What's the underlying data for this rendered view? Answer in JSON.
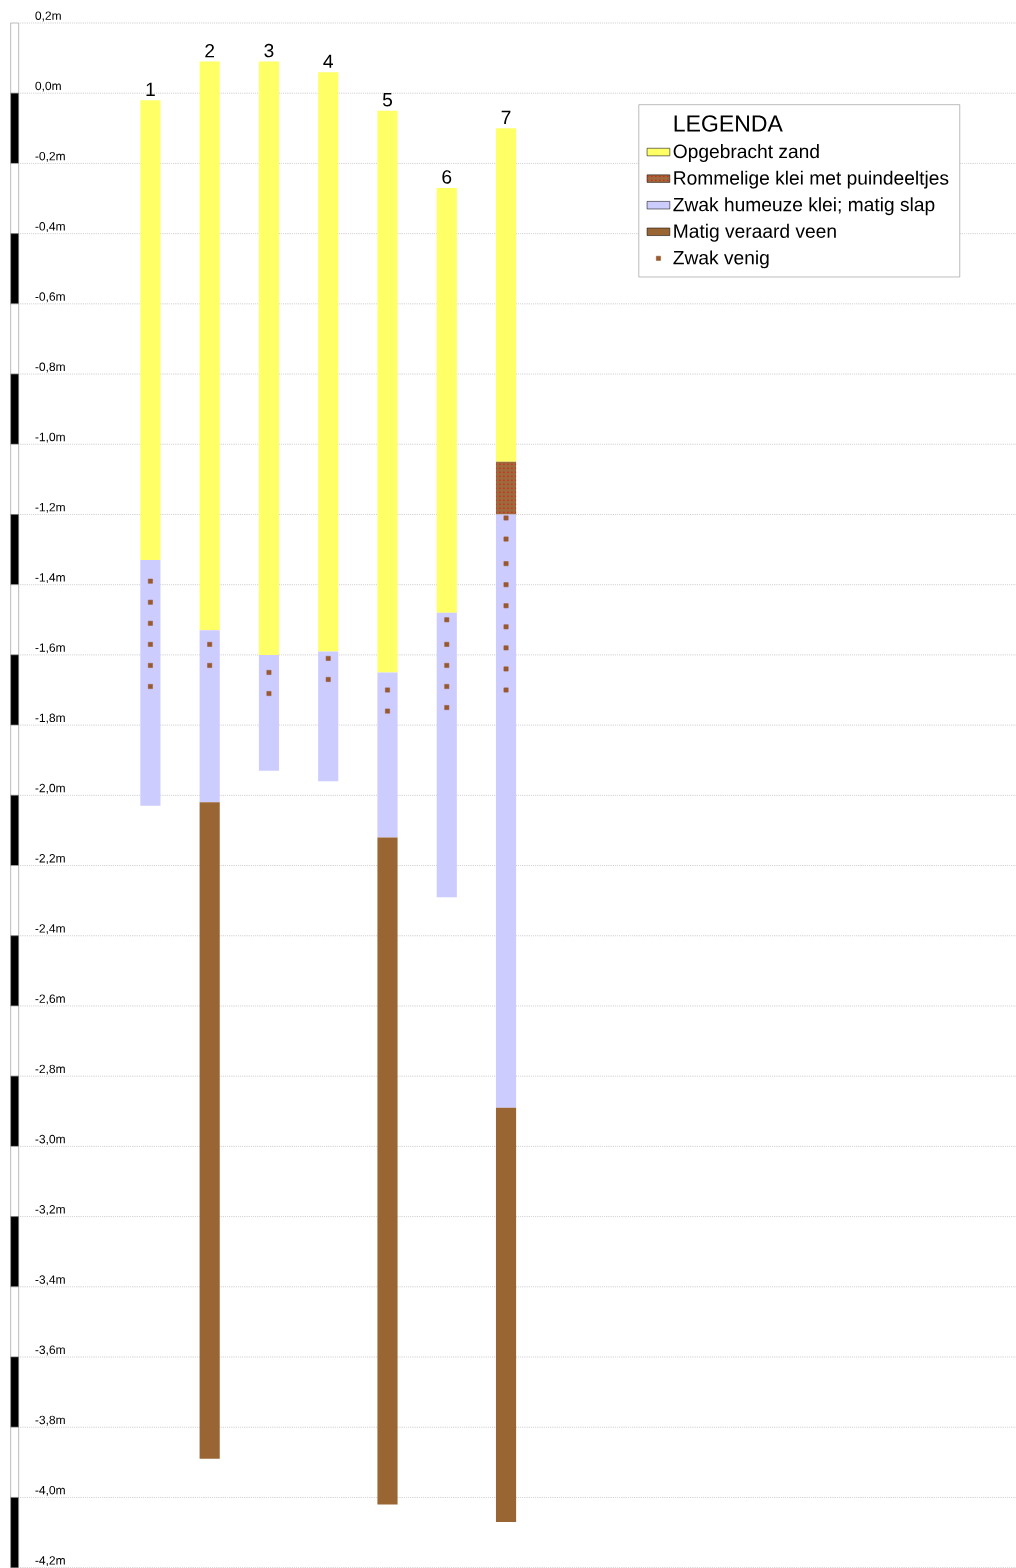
{
  "chart_data": {
    "type": "bar",
    "legend_title": "LEGENDA",
    "categories": [
      "1",
      "2",
      "3",
      "4",
      "5",
      "6",
      "7"
    ],
    "series": [
      {
        "name": "Opgebracht zand",
        "color": "#ffff66",
        "base": [
          -1.33,
          -1.53,
          -1.6,
          -1.59,
          -1.65,
          -1.48,
          -1.05
        ],
        "values": [
          1.31,
          1.62,
          1.69,
          1.65,
          1.6,
          1.21,
          0.95
        ]
      },
      {
        "name": "Rommelige klei met puindeeltjes",
        "color": "#9c6a3c",
        "base": [
          null,
          null,
          null,
          null,
          null,
          null,
          -1.2
        ],
        "values": [
          null,
          null,
          null,
          null,
          null,
          null,
          0.15
        ]
      },
      {
        "name": "Zwak humeuze klei; matig slap",
        "color": "#ccccff",
        "base": [
          -2.03,
          -2.02,
          -1.93,
          -1.96,
          -2.12,
          -2.29,
          -2.89
        ],
        "values": [
          0.7,
          0.49,
          0.33,
          0.37,
          0.47,
          0.81,
          1.69
        ]
      },
      {
        "name": "Matig veraard veen",
        "color": "#996633",
        "base": [
          null,
          -3.89,
          null,
          null,
          -4.02,
          null,
          -4.07
        ],
        "values": [
          null,
          1.87,
          null,
          null,
          1.9,
          null,
          1.18
        ]
      },
      {
        "name": "Zwak venig",
        "type": "scatter",
        "marker": "square",
        "color": "#99582e",
        "x": [
          "1",
          "1",
          "1",
          "1",
          "1",
          "1",
          "2",
          "2",
          "3",
          "3",
          "4",
          "4",
          "5",
          "5",
          "6",
          "6",
          "6",
          "6",
          "6",
          "7",
          "7",
          "7",
          "7",
          "7",
          "7",
          "7",
          "7",
          "7"
        ],
        "values": [
          -1.39,
          -1.45,
          -1.51,
          -1.57,
          -1.63,
          -1.69,
          -1.57,
          -1.63,
          -1.65,
          -1.71,
          -1.61,
          -1.67,
          -1.7,
          -1.76,
          -1.5,
          -1.57,
          -1.63,
          -1.69,
          -1.75,
          -1.21,
          -1.27,
          -1.34,
          -1.4,
          -1.46,
          -1.52,
          -1.58,
          -1.64,
          -1.7
        ]
      }
    ],
    "ylim": [
      -4.2,
      0.22
    ],
    "yticks": [
      {
        "value": 0.2,
        "label": "0,2m"
      },
      {
        "value": 0,
        "label": "0,0m"
      },
      {
        "value": -0.2,
        "label": "-0,2m"
      },
      {
        "value": -0.4,
        "label": "-0,4m"
      },
      {
        "value": -0.6,
        "label": "-0,6m"
      },
      {
        "value": -0.8,
        "label": "-0,8m"
      },
      {
        "value": -1.0,
        "label": "-1,0m"
      },
      {
        "value": -1.2,
        "label": "-1,2m"
      },
      {
        "value": -1.4,
        "label": "-1,4m"
      },
      {
        "value": -1.6,
        "label": "-1,6m"
      },
      {
        "value": -1.8,
        "label": "-1,8m"
      },
      {
        "value": -2.0,
        "label": "-2,0m"
      },
      {
        "value": -2.2,
        "label": "-2,2m"
      },
      {
        "value": -2.4,
        "label": "-2,4m"
      },
      {
        "value": -2.6,
        "label": "-2,6m"
      },
      {
        "value": -2.8,
        "label": "-2,8m"
      },
      {
        "value": -3.0,
        "label": "-3,0m"
      },
      {
        "value": -3.2,
        "label": "-3,2m"
      },
      {
        "value": -3.4,
        "label": "-3,4m"
      },
      {
        "value": -3.6,
        "label": "-3,6m"
      },
      {
        "value": -3.8,
        "label": "-3,8m"
      },
      {
        "value": -4.0,
        "label": "-4,0m"
      },
      {
        "value": -4.2,
        "label": "-4,2m"
      }
    ],
    "grid": "y",
    "legend": "top right"
  }
}
